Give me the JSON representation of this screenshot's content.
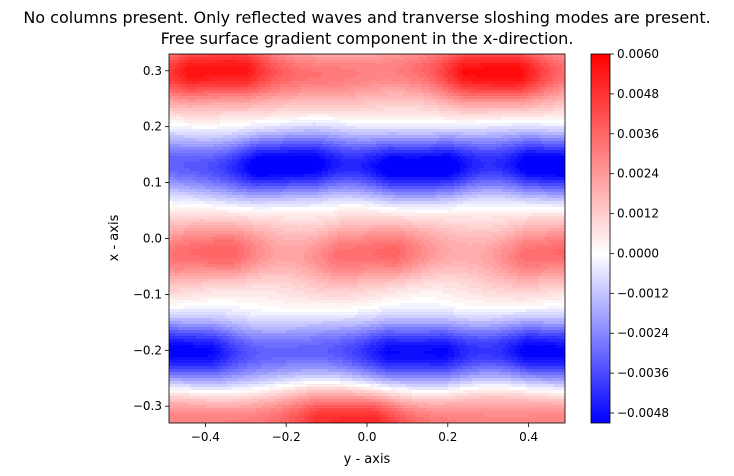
{
  "chart_data": {
    "type": "heatmap",
    "title_lines": [
      "No columns present. Only reflected waves and tranverse sloshing modes are present.",
      "Free surface gradient component in the x-direction."
    ],
    "xlabel": "y - axis",
    "ylabel": "x - axis",
    "xlim": [
      -0.49,
      0.49
    ],
    "ylim": [
      -0.33,
      0.33
    ],
    "x_ticks": [
      -0.4,
      -0.2,
      0.0,
      0.2,
      0.4
    ],
    "x_tick_labels": [
      "−0.4",
      "−0.2",
      "0.0",
      "0.2",
      "0.4"
    ],
    "y_ticks": [
      -0.3,
      -0.2,
      -0.1,
      0.0,
      0.1,
      0.2,
      0.3
    ],
    "y_tick_labels": [
      "−0.3",
      "−0.2",
      "−0.1",
      "0.0",
      "0.1",
      "0.2",
      "0.3"
    ],
    "colormap": "bwr",
    "color_min": "#0000ff",
    "color_mid": "#ffffff",
    "color_max": "#ff0000",
    "clim": [
      -0.0051,
      0.006
    ],
    "colorbar_ticks": [
      0.006,
      0.0048,
      0.0036,
      0.0024,
      0.0012,
      0.0,
      -0.0012,
      -0.0024,
      -0.0036,
      -0.0048
    ],
    "colorbar_tick_labels": [
      "0.0060",
      "0.0048",
      "0.0036",
      "0.0024",
      "0.0012",
      "0.0000",
      "−0.0012",
      "−0.0024",
      "−0.0036",
      "−0.0048"
    ],
    "field": {
      "description_of_bands": [
        {
          "x_center": 0.3,
          "sign": "positive",
          "peak_y": [
            -0.37,
            0.31
          ],
          "peak_value": 0.006
        },
        {
          "x_center": 0.13,
          "sign": "negative",
          "peak_y": [
            -0.2,
            0.13,
            0.47
          ],
          "peak_value": -0.0051
        },
        {
          "x_center": -0.03,
          "sign": "positive",
          "peak_y": [
            -0.4,
            0.0,
            0.46
          ],
          "peak_value": 0.0038
        },
        {
          "x_center": -0.2,
          "sign": "negative",
          "peak_y": [
            -0.45,
            0.12,
            0.47
          ],
          "peak_value": -0.0049
        },
        {
          "x_center": -0.33,
          "sign": "positive",
          "peak_y": [
            -0.05
          ],
          "peak_value": 0.0048
        }
      ]
    }
  }
}
